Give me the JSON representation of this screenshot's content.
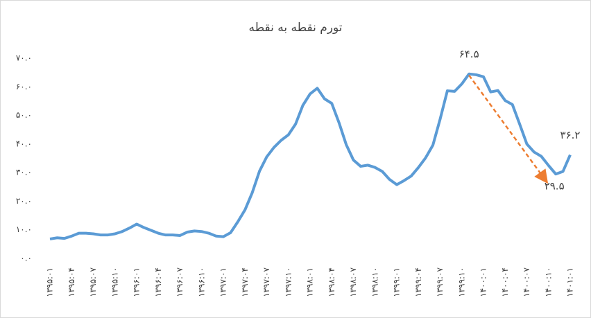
{
  "chart_data": {
    "type": "line",
    "title": "تورم نقطه به نقطه",
    "categories": [
      "۱۳۹۵:۰۱",
      null,
      null,
      "۱۳۹۵:۰۴",
      null,
      null,
      "۱۳۹۵:۰۷",
      null,
      null,
      "۱۳۹۵:۱۰",
      null,
      null,
      "۱۳۹۶:۰۱",
      null,
      null,
      "۱۳۹۶:۰۴",
      null,
      null,
      "۱۳۹۶:۰۷",
      null,
      null,
      "۱۳۹۶:۱۰",
      null,
      null,
      "۱۳۹۷:۰۱",
      null,
      null,
      "۱۳۹۷:۰۴",
      null,
      null,
      "۱۳۹۷:۰۷",
      null,
      null,
      "۱۳۹۷:۱۰",
      null,
      null,
      "۱۳۹۸:۰۱",
      null,
      null,
      "۱۳۹۸:۰۴",
      null,
      null,
      "۱۳۹۸:۰۷",
      null,
      null,
      "۱۳۹۸:۱۰",
      null,
      null,
      "۱۳۹۹:۰۱",
      null,
      null,
      "۱۳۹۹:۰۴",
      null,
      null,
      "۱۳۹۹:۰۷",
      null,
      null,
      "۱۳۹۹:۱۰",
      null,
      null,
      "۱۴۰۰:۰۱",
      null,
      null,
      "۱۴۰۰:۰۴",
      null,
      null,
      "۱۴۰۰:۰۷",
      null,
      null,
      "۱۴۰۰:۱۰",
      null,
      null,
      "۱۴۰۱:۰۱"
    ],
    "series": [
      {
        "color": "#5b9bd5",
        "values": [
          6.8,
          7.2,
          7.0,
          7.8,
          8.8,
          8.8,
          8.6,
          8.2,
          8.2,
          8.6,
          9.4,
          10.6,
          12.0,
          10.8,
          9.8,
          8.8,
          8.2,
          8.2,
          8.0,
          9.2,
          9.6,
          9.4,
          8.8,
          7.8,
          7.6,
          9.0,
          12.8,
          17.0,
          23.0,
          30.5,
          35.5,
          38.8,
          41.3,
          43.2,
          47.0,
          53.5,
          57.5,
          59.5,
          55.8,
          54.2,
          47.5,
          39.8,
          34.4,
          32.2,
          32.6,
          31.8,
          30.4,
          27.6,
          25.8,
          27.2,
          28.8,
          31.8,
          35.2,
          39.6,
          48.7,
          58.6,
          58.4,
          61.0,
          64.5,
          64.2,
          63.5,
          58.2,
          58.7,
          55.2,
          53.8,
          47.0,
          40.0,
          37.2,
          35.7,
          32.5,
          29.5,
          30.4,
          36.2
        ]
      }
    ],
    "ylim": [
      0,
      70
    ],
    "yticks": [
      {
        "value": 0,
        "label": "۰.۰"
      },
      {
        "value": 10,
        "label": "۱۰.۰"
      },
      {
        "value": 20,
        "label": "۲۰.۰"
      },
      {
        "value": 30,
        "label": "۳۰.۰"
      },
      {
        "value": 40,
        "label": "۴۰.۰"
      },
      {
        "value": 50,
        "label": "۵۰.۰"
      },
      {
        "value": 60,
        "label": "۶۰.۰"
      },
      {
        "value": 70,
        "label": "۷۰.۰"
      }
    ],
    "grid": false,
    "annotations": [
      {
        "value": 64.5,
        "label": "۶۴.۵"
      },
      {
        "value": 36.2,
        "label": "۳۶.۲"
      },
      {
        "value": 29.5,
        "label": "۲۹.۵"
      }
    ],
    "arrow_color": "#ed7d31"
  }
}
